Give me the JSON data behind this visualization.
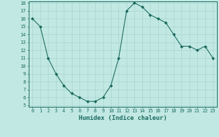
{
  "x": [
    0,
    1,
    2,
    3,
    4,
    5,
    6,
    7,
    8,
    9,
    10,
    11,
    12,
    13,
    14,
    15,
    16,
    17,
    18,
    19,
    20,
    21,
    22,
    23
  ],
  "y": [
    16,
    15,
    11,
    9,
    7.5,
    6.5,
    6,
    5.5,
    5.5,
    6,
    7.5,
    11,
    17,
    18,
    17.5,
    16.5,
    16,
    15.5,
    14,
    12.5,
    12.5,
    12,
    12.5,
    11
  ],
  "xlabel": "Humidex (Indice chaleur)",
  "ylim_min": 5,
  "ylim_max": 18,
  "xlim_min": -0.5,
  "xlim_max": 23.5,
  "line_color": "#1a6b5e",
  "marker": "D",
  "marker_size": 2.0,
  "bg_color": "#c2e8e4",
  "grid_color": "#a8d4cf",
  "tick_color": "#1a6b5e",
  "label_color": "#1a6b5e",
  "yticks": [
    5,
    6,
    7,
    8,
    9,
    10,
    11,
    12,
    13,
    14,
    15,
    16,
    17,
    18
  ],
  "xticks": [
    0,
    1,
    2,
    3,
    4,
    5,
    6,
    7,
    8,
    9,
    10,
    11,
    12,
    13,
    14,
    15,
    16,
    17,
    18,
    19,
    20,
    21,
    22,
    23
  ],
  "tick_fontsize": 5.0,
  "xlabel_fontsize": 6.5
}
